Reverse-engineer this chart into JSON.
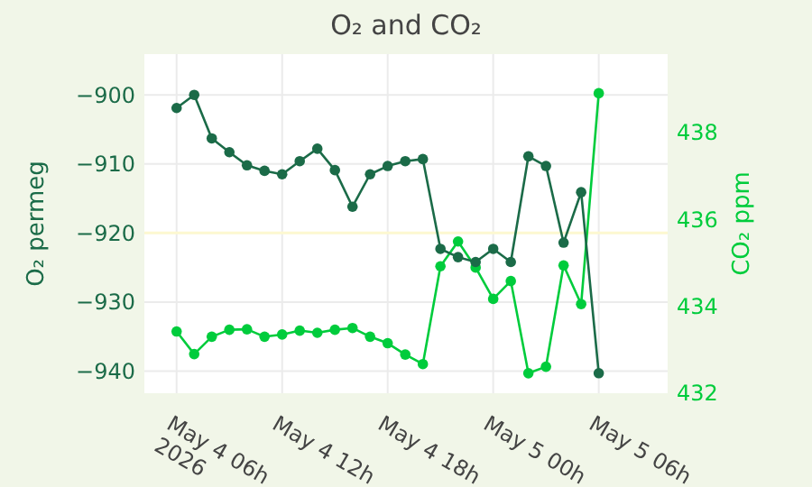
{
  "chart_data": {
    "type": "line",
    "title": "O₂ and CO₂",
    "ylabel": "O₂ permeg",
    "y2label": "CO₂ ppm",
    "x": [
      "2026-05-04T06:00",
      "2026-05-04T07:00",
      "2026-05-04T08:00",
      "2026-05-04T09:00",
      "2026-05-04T10:00",
      "2026-05-04T11:00",
      "2026-05-04T12:00",
      "2026-05-04T13:00",
      "2026-05-04T14:00",
      "2026-05-04T15:00",
      "2026-05-04T16:00",
      "2026-05-04T17:00",
      "2026-05-04T18:00",
      "2026-05-04T19:00",
      "2026-05-04T20:00",
      "2026-05-04T21:00",
      "2026-05-04T22:00",
      "2026-05-04T23:00",
      "2026-05-05T00:00",
      "2026-05-05T01:00",
      "2026-05-05T02:00",
      "2026-05-05T03:00",
      "2026-05-05T04:00",
      "2026-05-05T05:00",
      "2026-05-05T06:00"
    ],
    "series": [
      {
        "color": "#1b6b48",
        "values": [
          -901.9,
          -900,
          -906.3,
          -908.3,
          -910.2,
          -911.0,
          -911.5,
          -909.6,
          -907.8,
          -910.9,
          -916.2,
          -911.5,
          -910.3,
          -909.6,
          -909.3,
          -922.3,
          -923.5,
          -924.2,
          -922.3,
          -924.2,
          -908.9,
          -910.3,
          -921.4,
          -914.1,
          -940.3
        ]
      },
      {
        "color": "#00cc3c",
        "axis": "y2",
        "values": [
          433.42,
          432.9,
          433.3,
          433.46,
          433.47,
          433.3,
          433.35,
          433.44,
          433.39,
          433.46,
          433.5,
          433.3,
          433.15,
          432.89,
          432.67,
          434.92,
          435.49,
          434.89,
          434.17,
          434.58,
          432.46,
          432.61,
          434.94,
          434.05,
          438.9
        ]
      }
    ],
    "xlim": [
      "2026-05-04T04:10",
      "2026-05-05T09:55"
    ],
    "xticks": [
      {
        "value": "2026-05-04T06:00",
        "label": "May 4 06h\n2026"
      },
      {
        "value": "2026-05-04T12:00",
        "label": "May 4 12h"
      },
      {
        "value": "2026-05-04T18:00",
        "label": "May 4 18h"
      },
      {
        "value": "2026-05-05T00:00",
        "label": "May 5 00h"
      },
      {
        "value": "2026-05-05T06:00",
        "label": "May 5 06h"
      }
    ],
    "ylim": [
      -943.2,
      -894.1
    ],
    "yticks": [
      -940,
      -930,
      -920,
      -910,
      -900
    ],
    "y2lim": [
      432,
      439.8
    ],
    "y2ticks": [
      432,
      434,
      436,
      438
    ],
    "ref_lines": [
      {
        "axis": "y",
        "value": -920,
        "color": "#fdf8d0"
      }
    ],
    "grid": true,
    "marker": "circle",
    "line_style": "solid"
  }
}
